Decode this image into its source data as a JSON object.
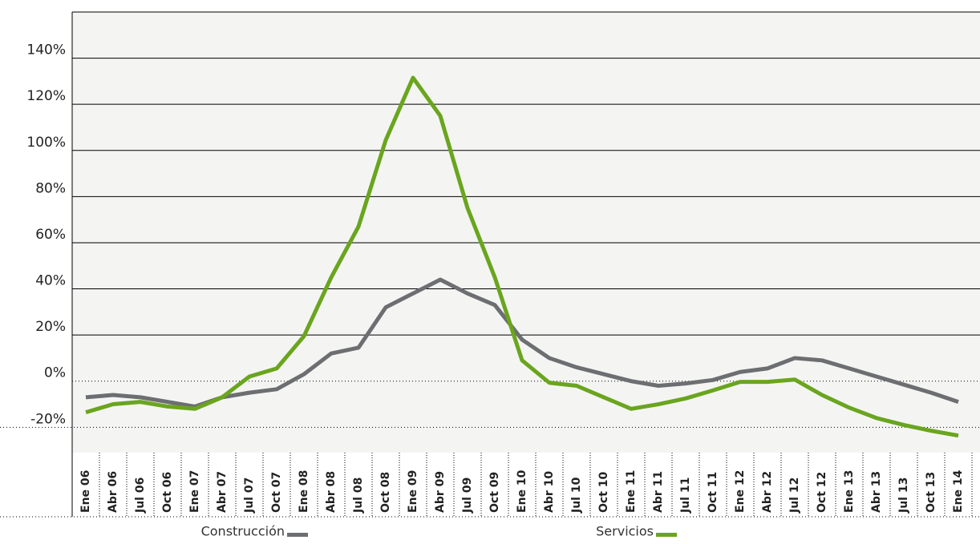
{
  "chart_data": {
    "type": "line",
    "categories": [
      "Ene 06",
      "Abr 06",
      "Jul 06",
      "Oct 06",
      "Ene 07",
      "Abr 07",
      "Jul 07",
      "Oct 07",
      "Ene 08",
      "Abr 08",
      "Jul 08",
      "Oct 08",
      "Ene 09",
      "Abr 09",
      "Jul 09",
      "Oct 09",
      "Ene 10",
      "Abr 10",
      "Jul 10",
      "Oct 10",
      "Ene 11",
      "Abr 11",
      "Jul 11",
      "Oct 11",
      "Ene 12",
      "Abr 12",
      "Jul 12",
      "Oct 12",
      "Ene 13",
      "Abr 13",
      "Jul 13",
      "Oct 13",
      "Ene 14"
    ],
    "series": [
      {
        "name": "Construcción",
        "color": "#6d6e71",
        "values": [
          -7,
          -6,
          -7,
          -9,
          -11,
          -7,
          -5,
          -3.5,
          3,
          12,
          14.5,
          32,
          38,
          44,
          38,
          33,
          18,
          10,
          6,
          3,
          0,
          -2,
          -1,
          0.5,
          4,
          5.5,
          10,
          9,
          5.5,
          2,
          -1.5,
          -5,
          -9
        ]
      },
      {
        "name": "Servicios",
        "color": "#6aa51e",
        "values": [
          -13.5,
          -10,
          -9,
          -11,
          -12,
          -7,
          2,
          5.5,
          19.5,
          45,
          67,
          104.5,
          131.5,
          115,
          75,
          45,
          9,
          -0.7,
          -2,
          -7,
          -12,
          -10,
          -7.5,
          -4,
          -0.3,
          -0.3,
          0.7,
          -6,
          -11.5,
          -16,
          -19,
          -21.5,
          -23.6
        ]
      }
    ],
    "ylim": [
      -31,
      160
    ],
    "yticks": [
      {
        "value": -20,
        "label": "-20%"
      },
      {
        "value": 0,
        "label": "0%"
      },
      {
        "value": 20,
        "label": "20%"
      },
      {
        "value": 40,
        "label": "40%"
      },
      {
        "value": 60,
        "label": "60%"
      },
      {
        "value": 80,
        "label": "80%"
      },
      {
        "value": 100,
        "label": "100%"
      },
      {
        "value": 120,
        "label": "120%"
      },
      {
        "value": 140,
        "label": "140%"
      }
    ],
    "grid": true
  }
}
